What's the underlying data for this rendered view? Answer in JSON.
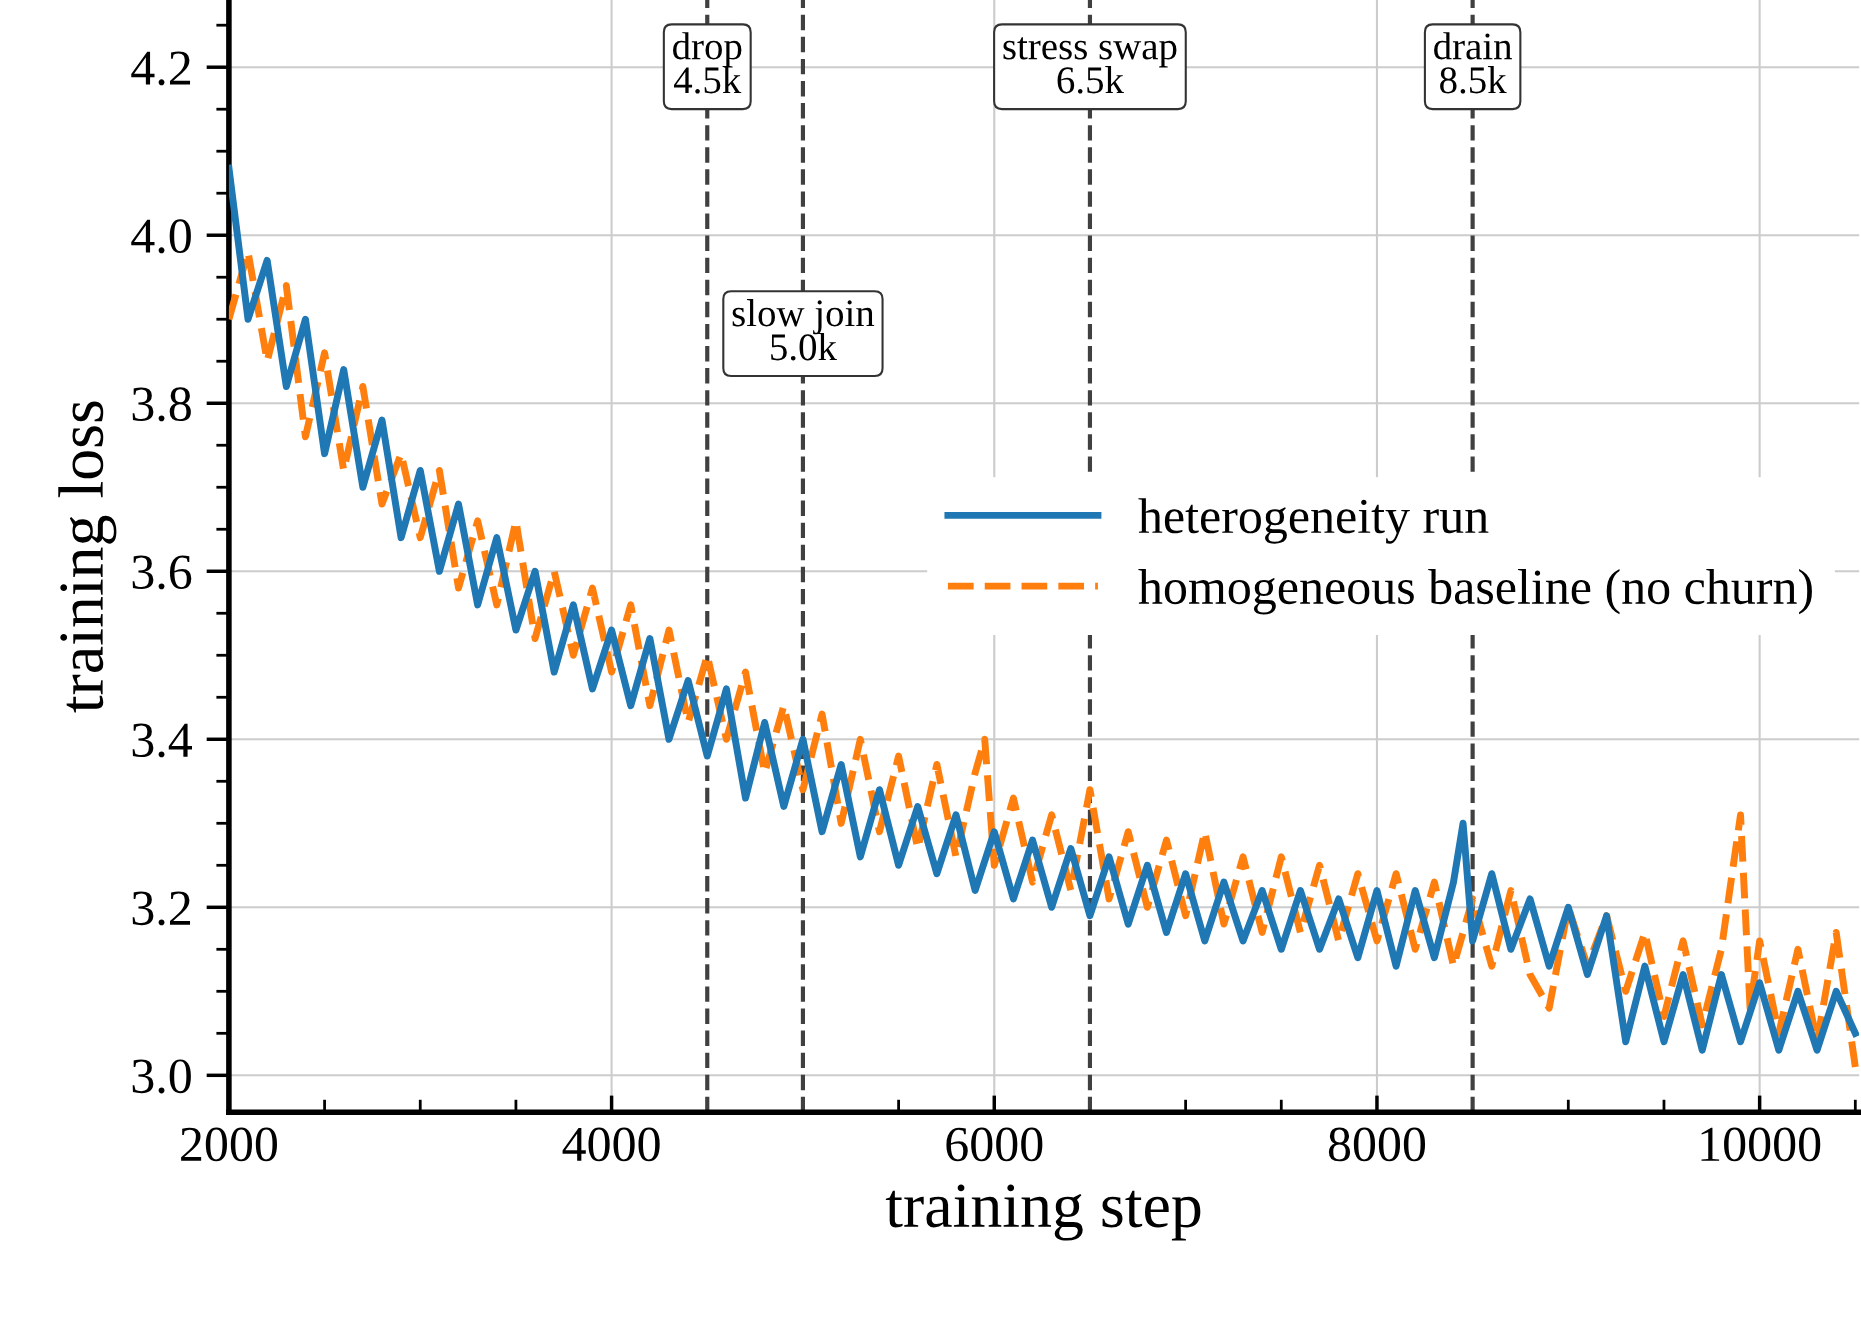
{
  "chart_data": {
    "type": "line",
    "xlabel": "training step",
    "ylabel": "training loss",
    "xlim": [
      2000,
      10520
    ],
    "ylim": [
      2.956,
      4.28
    ],
    "xticks": [
      2000,
      4000,
      6000,
      8000,
      10000,
      {
        "value": 2500,
        "label": null
      },
      {
        "value": 3000,
        "label": null
      },
      {
        "value": 3500,
        "label": null
      },
      {
        "value": 5500,
        "label": null
      },
      {
        "value": 7000,
        "label": null
      },
      {
        "value": 7500,
        "label": null
      },
      {
        "value": 9000,
        "label": null
      },
      {
        "value": 9500,
        "label": null
      },
      {
        "value": 10500,
        "label": null
      }
    ],
    "yticks": [
      {
        "value": 3.0,
        "label": "3.0"
      },
      {
        "value": 3.2,
        "label": "3.2"
      },
      {
        "value": 3.4,
        "label": "3.4"
      },
      {
        "value": 3.6,
        "label": "3.6"
      },
      {
        "value": 3.8,
        "label": "3.8"
      },
      {
        "value": 4.0,
        "label": "4.0"
      },
      {
        "value": 4.2,
        "label": "4.2"
      },
      {
        "value": 3.05,
        "label": null
      },
      {
        "value": 3.1,
        "label": null
      },
      {
        "value": 3.15,
        "label": null
      },
      {
        "value": 3.25,
        "label": null
      },
      {
        "value": 3.3,
        "label": null
      },
      {
        "value": 3.35,
        "label": null
      },
      {
        "value": 3.45,
        "label": null
      },
      {
        "value": 3.5,
        "label": null
      },
      {
        "value": 3.55,
        "label": null
      },
      {
        "value": 3.65,
        "label": null
      },
      {
        "value": 3.7,
        "label": null
      },
      {
        "value": 3.75,
        "label": null
      },
      {
        "value": 3.85,
        "label": null
      },
      {
        "value": 3.9,
        "label": null
      },
      {
        "value": 3.95,
        "label": null
      },
      {
        "value": 4.05,
        "label": null
      },
      {
        "value": 4.1,
        "label": null
      },
      {
        "value": 4.15,
        "label": null
      },
      {
        "value": 4.25,
        "label": null
      }
    ],
    "grid": true,
    "legend": "right",
    "marker": "none",
    "series": [
      {
        "name": "heterogeneity run",
        "color": "#1f77b4",
        "line_style": "solid",
        "x": [
          2000,
          2100,
          2200,
          2300,
          2400,
          2500,
          2600,
          2700,
          2800,
          2900,
          3000,
          3100,
          3200,
          3300,
          3400,
          3500,
          3600,
          3700,
          3800,
          3900,
          4000,
          4100,
          4200,
          4300,
          4400,
          4500,
          4600,
          4700,
          4800,
          4900,
          5000,
          5100,
          5200,
          5300,
          5400,
          5500,
          5600,
          5700,
          5800,
          5900,
          6000,
          6100,
          6200,
          6300,
          6400,
          6500,
          6600,
          6700,
          6800,
          6900,
          7000,
          7100,
          7200,
          7300,
          7400,
          7500,
          7600,
          7700,
          7800,
          7900,
          8000,
          8100,
          8200,
          8300,
          8400,
          8450,
          8500,
          8600,
          8700,
          8800,
          8900,
          9000,
          9100,
          9200,
          9300,
          9400,
          9500,
          9600,
          9700,
          9800,
          9900,
          10000,
          10100,
          10200,
          10300,
          10400,
          10500
        ],
        "values": [
          4.08,
          3.9,
          3.97,
          3.82,
          3.9,
          3.74,
          3.84,
          3.7,
          3.78,
          3.64,
          3.72,
          3.6,
          3.68,
          3.56,
          3.64,
          3.53,
          3.6,
          3.48,
          3.56,
          3.46,
          3.53,
          3.44,
          3.52,
          3.4,
          3.47,
          3.38,
          3.46,
          3.33,
          3.42,
          3.32,
          3.4,
          3.29,
          3.37,
          3.26,
          3.34,
          3.25,
          3.32,
          3.24,
          3.31,
          3.22,
          3.29,
          3.21,
          3.28,
          3.2,
          3.27,
          3.19,
          3.26,
          3.18,
          3.25,
          3.17,
          3.24,
          3.16,
          3.23,
          3.16,
          3.22,
          3.15,
          3.22,
          3.15,
          3.21,
          3.14,
          3.22,
          3.13,
          3.22,
          3.14,
          3.23,
          3.3,
          3.16,
          3.24,
          3.15,
          3.21,
          3.13,
          3.2,
          3.12,
          3.19,
          3.04,
          3.13,
          3.04,
          3.12,
          3.03,
          3.12,
          3.04,
          3.11,
          3.03,
          3.1,
          3.03,
          3.1,
          3.05
        ]
      },
      {
        "name": "homogeneous baseline (no churn)",
        "color": "#ff7f0e",
        "line_style": "dashed",
        "x": [
          2000,
          2100,
          2200,
          2300,
          2400,
          2500,
          2600,
          2700,
          2800,
          2900,
          3000,
          3100,
          3200,
          3300,
          3400,
          3500,
          3600,
          3700,
          3800,
          3900,
          4000,
          4100,
          4200,
          4300,
          4400,
          4500,
          4600,
          4700,
          4800,
          4900,
          5000,
          5100,
          5200,
          5300,
          5400,
          5500,
          5600,
          5700,
          5800,
          5900,
          5950,
          6000,
          6100,
          6200,
          6300,
          6400,
          6500,
          6600,
          6700,
          6800,
          6900,
          7000,
          7100,
          7200,
          7300,
          7400,
          7500,
          7600,
          7700,
          7800,
          7900,
          8000,
          8100,
          8200,
          8300,
          8400,
          8500,
          8600,
          8700,
          8800,
          8900,
          9000,
          9100,
          9200,
          9300,
          9400,
          9500,
          9600,
          9700,
          9800,
          9900,
          9950,
          10000,
          10100,
          10200,
          10300,
          10400,
          10500
        ],
        "values": [
          3.9,
          3.98,
          3.85,
          3.94,
          3.76,
          3.86,
          3.72,
          3.82,
          3.68,
          3.74,
          3.64,
          3.72,
          3.58,
          3.66,
          3.56,
          3.66,
          3.52,
          3.6,
          3.5,
          3.58,
          3.48,
          3.56,
          3.44,
          3.53,
          3.42,
          3.5,
          3.4,
          3.48,
          3.36,
          3.44,
          3.34,
          3.43,
          3.3,
          3.4,
          3.29,
          3.38,
          3.27,
          3.37,
          3.26,
          3.36,
          3.4,
          3.25,
          3.33,
          3.23,
          3.31,
          3.22,
          3.34,
          3.21,
          3.29,
          3.2,
          3.28,
          3.19,
          3.29,
          3.18,
          3.26,
          3.17,
          3.26,
          3.17,
          3.25,
          3.16,
          3.24,
          3.16,
          3.24,
          3.15,
          3.23,
          3.13,
          3.21,
          3.13,
          3.22,
          3.12,
          3.08,
          3.2,
          3.13,
          3.19,
          3.1,
          3.17,
          3.07,
          3.16,
          3.06,
          3.15,
          3.31,
          3.08,
          3.16,
          3.05,
          3.15,
          3.04,
          3.17,
          3.01
        ]
      }
    ],
    "ref_lines": [
      {
        "axis": "x",
        "value": 4500,
        "label": "drop\n4.5k",
        "color": "#404040",
        "line_style": "dashed"
      },
      {
        "axis": "x",
        "value": 5000,
        "label": "slow join\n5.0k",
        "color": "#404040",
        "line_style": "dashed"
      },
      {
        "axis": "x",
        "value": 6500,
        "label": "stress swap\n6.5k",
        "color": "#404040",
        "line_style": "dashed"
      },
      {
        "axis": "x",
        "value": 8500,
        "label": "drain\n8.5k",
        "color": "#404040",
        "line_style": "dashed"
      }
    ]
  }
}
